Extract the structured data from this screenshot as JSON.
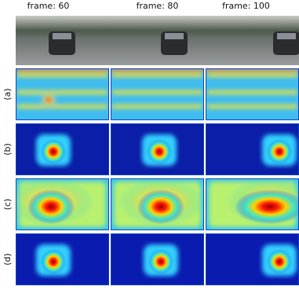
{
  "columns": [
    "frame: 60",
    "frame: 80",
    "frame: 100"
  ],
  "rows": [
    "(a)",
    "(b)",
    "(c)",
    "(d)"
  ]
}
